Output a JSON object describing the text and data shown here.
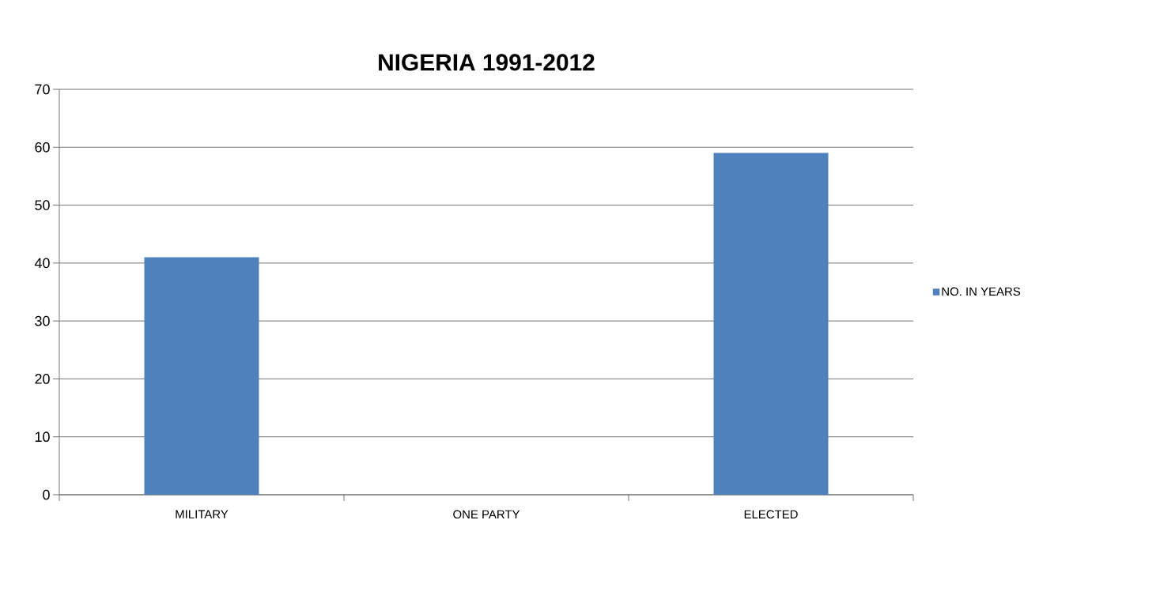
{
  "chart_data": {
    "type": "bar",
    "title": "NIGERIA 1991-2012",
    "categories": [
      "MILITARY",
      "ONE PARTY",
      "ELECTED"
    ],
    "series": [
      {
        "name": "NO. IN YEARS",
        "color": "#4f81bd",
        "values": [
          41,
          0,
          59
        ]
      }
    ],
    "ylim": [
      0,
      70
    ],
    "yticks": [
      0,
      10,
      20,
      30,
      40,
      50,
      60,
      70
    ],
    "grid": "y",
    "legend": "right"
  }
}
